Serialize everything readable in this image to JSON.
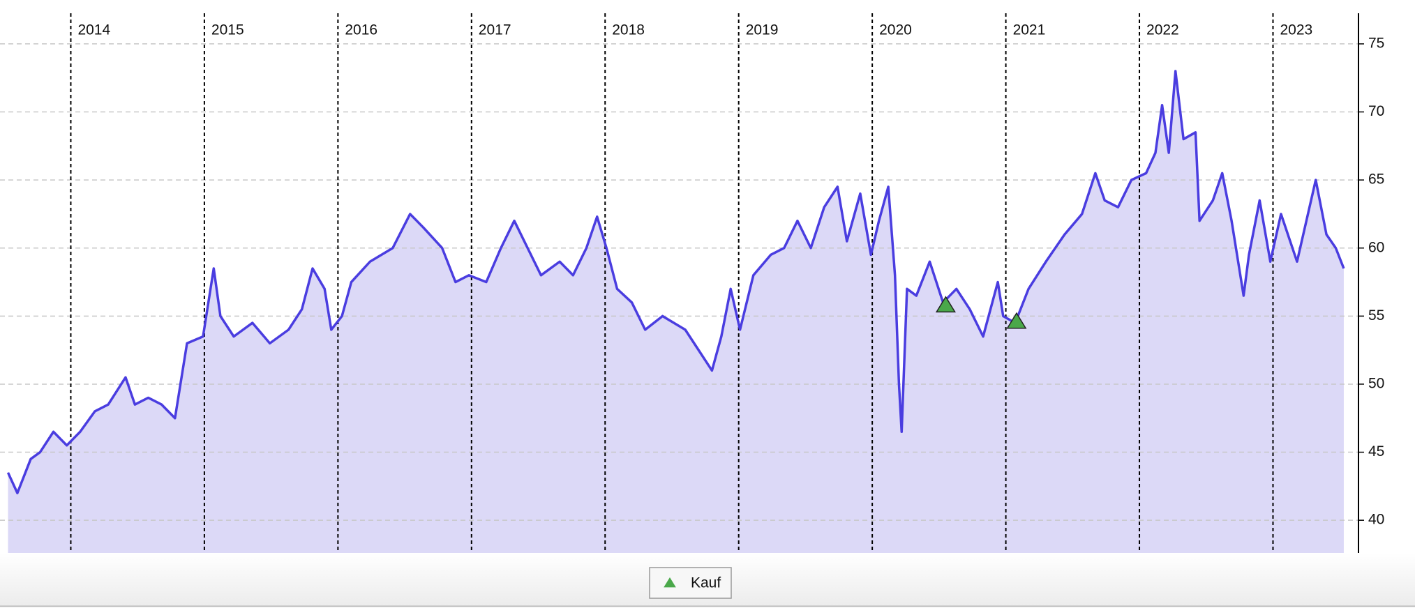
{
  "chart_data": {
    "type": "line",
    "xlim": [
      2013.47,
      2023.64
    ],
    "xticks": [
      2014,
      2015,
      2016,
      2017,
      2018,
      2019,
      2020,
      2021,
      2022,
      2023
    ],
    "ylim": [
      37.6,
      77.25
    ],
    "yticks": [
      40,
      45,
      50,
      55,
      60,
      65,
      70,
      75
    ],
    "grid": true,
    "legend": "bottom",
    "series": [
      {
        "color": "#4a3de0",
        "fill": "#dcd9f7",
        "x": [
          2013.53,
          2013.6,
          2013.7,
          2013.77,
          2013.87,
          2013.97,
          2014.07,
          2014.18,
          2014.28,
          2014.41,
          2014.48,
          2014.58,
          2014.68,
          2014.78,
          2014.87,
          2014.99,
          2015.07,
          2015.12,
          2015.22,
          2015.36,
          2015.49,
          2015.63,
          2015.73,
          2015.81,
          2015.9,
          2015.95,
          2016.03,
          2016.1,
          2016.24,
          2016.41,
          2016.54,
          2016.64,
          2016.78,
          2016.88,
          2016.98,
          2017.11,
          2017.22,
          2017.32,
          2017.42,
          2017.52,
          2017.66,
          2017.76,
          2017.86,
          2017.94,
          2018.01,
          2018.09,
          2018.2,
          2018.3,
          2018.43,
          2018.6,
          2018.7,
          2018.8,
          2018.87,
          2018.94,
          2019.01,
          2019.11,
          2019.24,
          2019.34,
          2019.44,
          2019.54,
          2019.64,
          2019.74,
          2019.81,
          2019.91,
          2019.99,
          2020.05,
          2020.12,
          2020.17,
          2020.2,
          2020.22,
          2020.26,
          2020.33,
          2020.43,
          2020.53,
          2020.63,
          2020.73,
          2020.83,
          2020.94,
          2020.98,
          2021.07,
          2021.17,
          2021.3,
          2021.44,
          2021.57,
          2021.67,
          2021.74,
          2021.84,
          2021.94,
          2022.05,
          2022.12,
          2022.17,
          2022.22,
          2022.27,
          2022.33,
          2022.42,
          2022.45,
          2022.55,
          2022.62,
          2022.69,
          2022.78,
          2022.82,
          2022.9,
          2022.98,
          2023.06,
          2023.18,
          2023.32,
          2023.4,
          2023.47,
          2023.53
        ],
        "values": [
          43.5,
          42,
          44.5,
          45,
          46.5,
          45.5,
          46.5,
          48,
          48.5,
          50.5,
          48.5,
          49,
          48.5,
          47.5,
          53,
          53.5,
          58.5,
          55,
          53.5,
          54.5,
          53,
          54,
          55.5,
          58.5,
          57,
          54,
          55,
          57.5,
          59,
          60,
          62.5,
          61.5,
          60,
          57.5,
          58,
          57.5,
          60,
          62,
          60,
          58,
          59,
          58,
          60,
          62.3,
          60,
          57,
          56,
          54,
          55,
          54,
          52.5,
          51,
          53.5,
          57,
          54,
          58,
          59.5,
          60,
          62,
          60,
          63,
          64.5,
          60.5,
          64,
          59.5,
          62,
          64.5,
          58,
          50,
          46.5,
          57,
          56.5,
          59,
          56,
          57,
          55.5,
          53.5,
          57.5,
          55,
          54.5,
          57,
          59,
          61,
          62.5,
          65.5,
          63.5,
          63,
          65,
          65.5,
          67,
          70.5,
          67,
          73,
          68,
          68.5,
          62,
          63.5,
          65.5,
          62,
          56.5,
          59.5,
          63.5,
          59,
          62.5,
          59,
          65,
          61,
          60,
          58.5
        ]
      },
      {
        "name": "Kauf",
        "color": "#4aa84a",
        "marker": "triangle",
        "x": [
          2020.55,
          2021.08
        ],
        "values": [
          55.8,
          54.6
        ]
      }
    ]
  }
}
